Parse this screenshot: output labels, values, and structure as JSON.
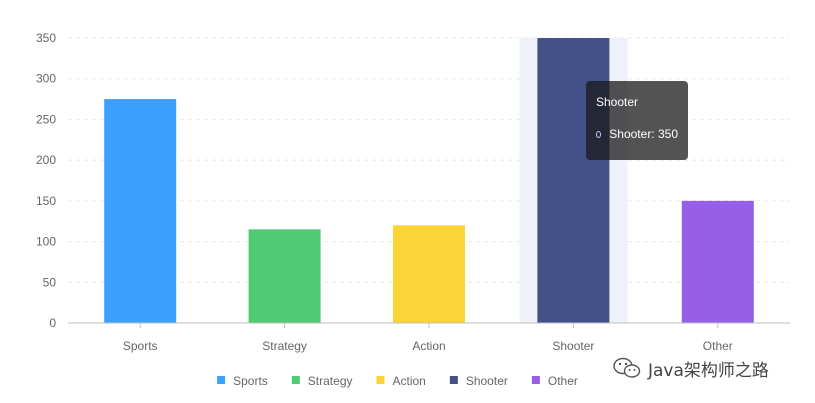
{
  "chart_data": {
    "type": "bar",
    "title": "",
    "xlabel": "",
    "ylabel": "",
    "categories": [
      "Sports",
      "Strategy",
      "Action",
      "Shooter",
      "Other"
    ],
    "values": [
      275,
      115,
      120,
      350,
      150
    ],
    "colors": [
      "#3aa1ff",
      "#4ecb73",
      "#fbd437",
      "#435188",
      "#975fe5"
    ],
    "ylim": [
      0,
      350
    ],
    "yticks": [
      0,
      50,
      100,
      150,
      200,
      250,
      300,
      350
    ],
    "grid": true,
    "legend_position": "bottom",
    "highlighted_category": "Shooter"
  },
  "tooltip": {
    "title": "Shooter",
    "label": "Shooter: 350"
  },
  "watermark": {
    "text": "Java架构师之路",
    "icon": "wechat-icon"
  }
}
